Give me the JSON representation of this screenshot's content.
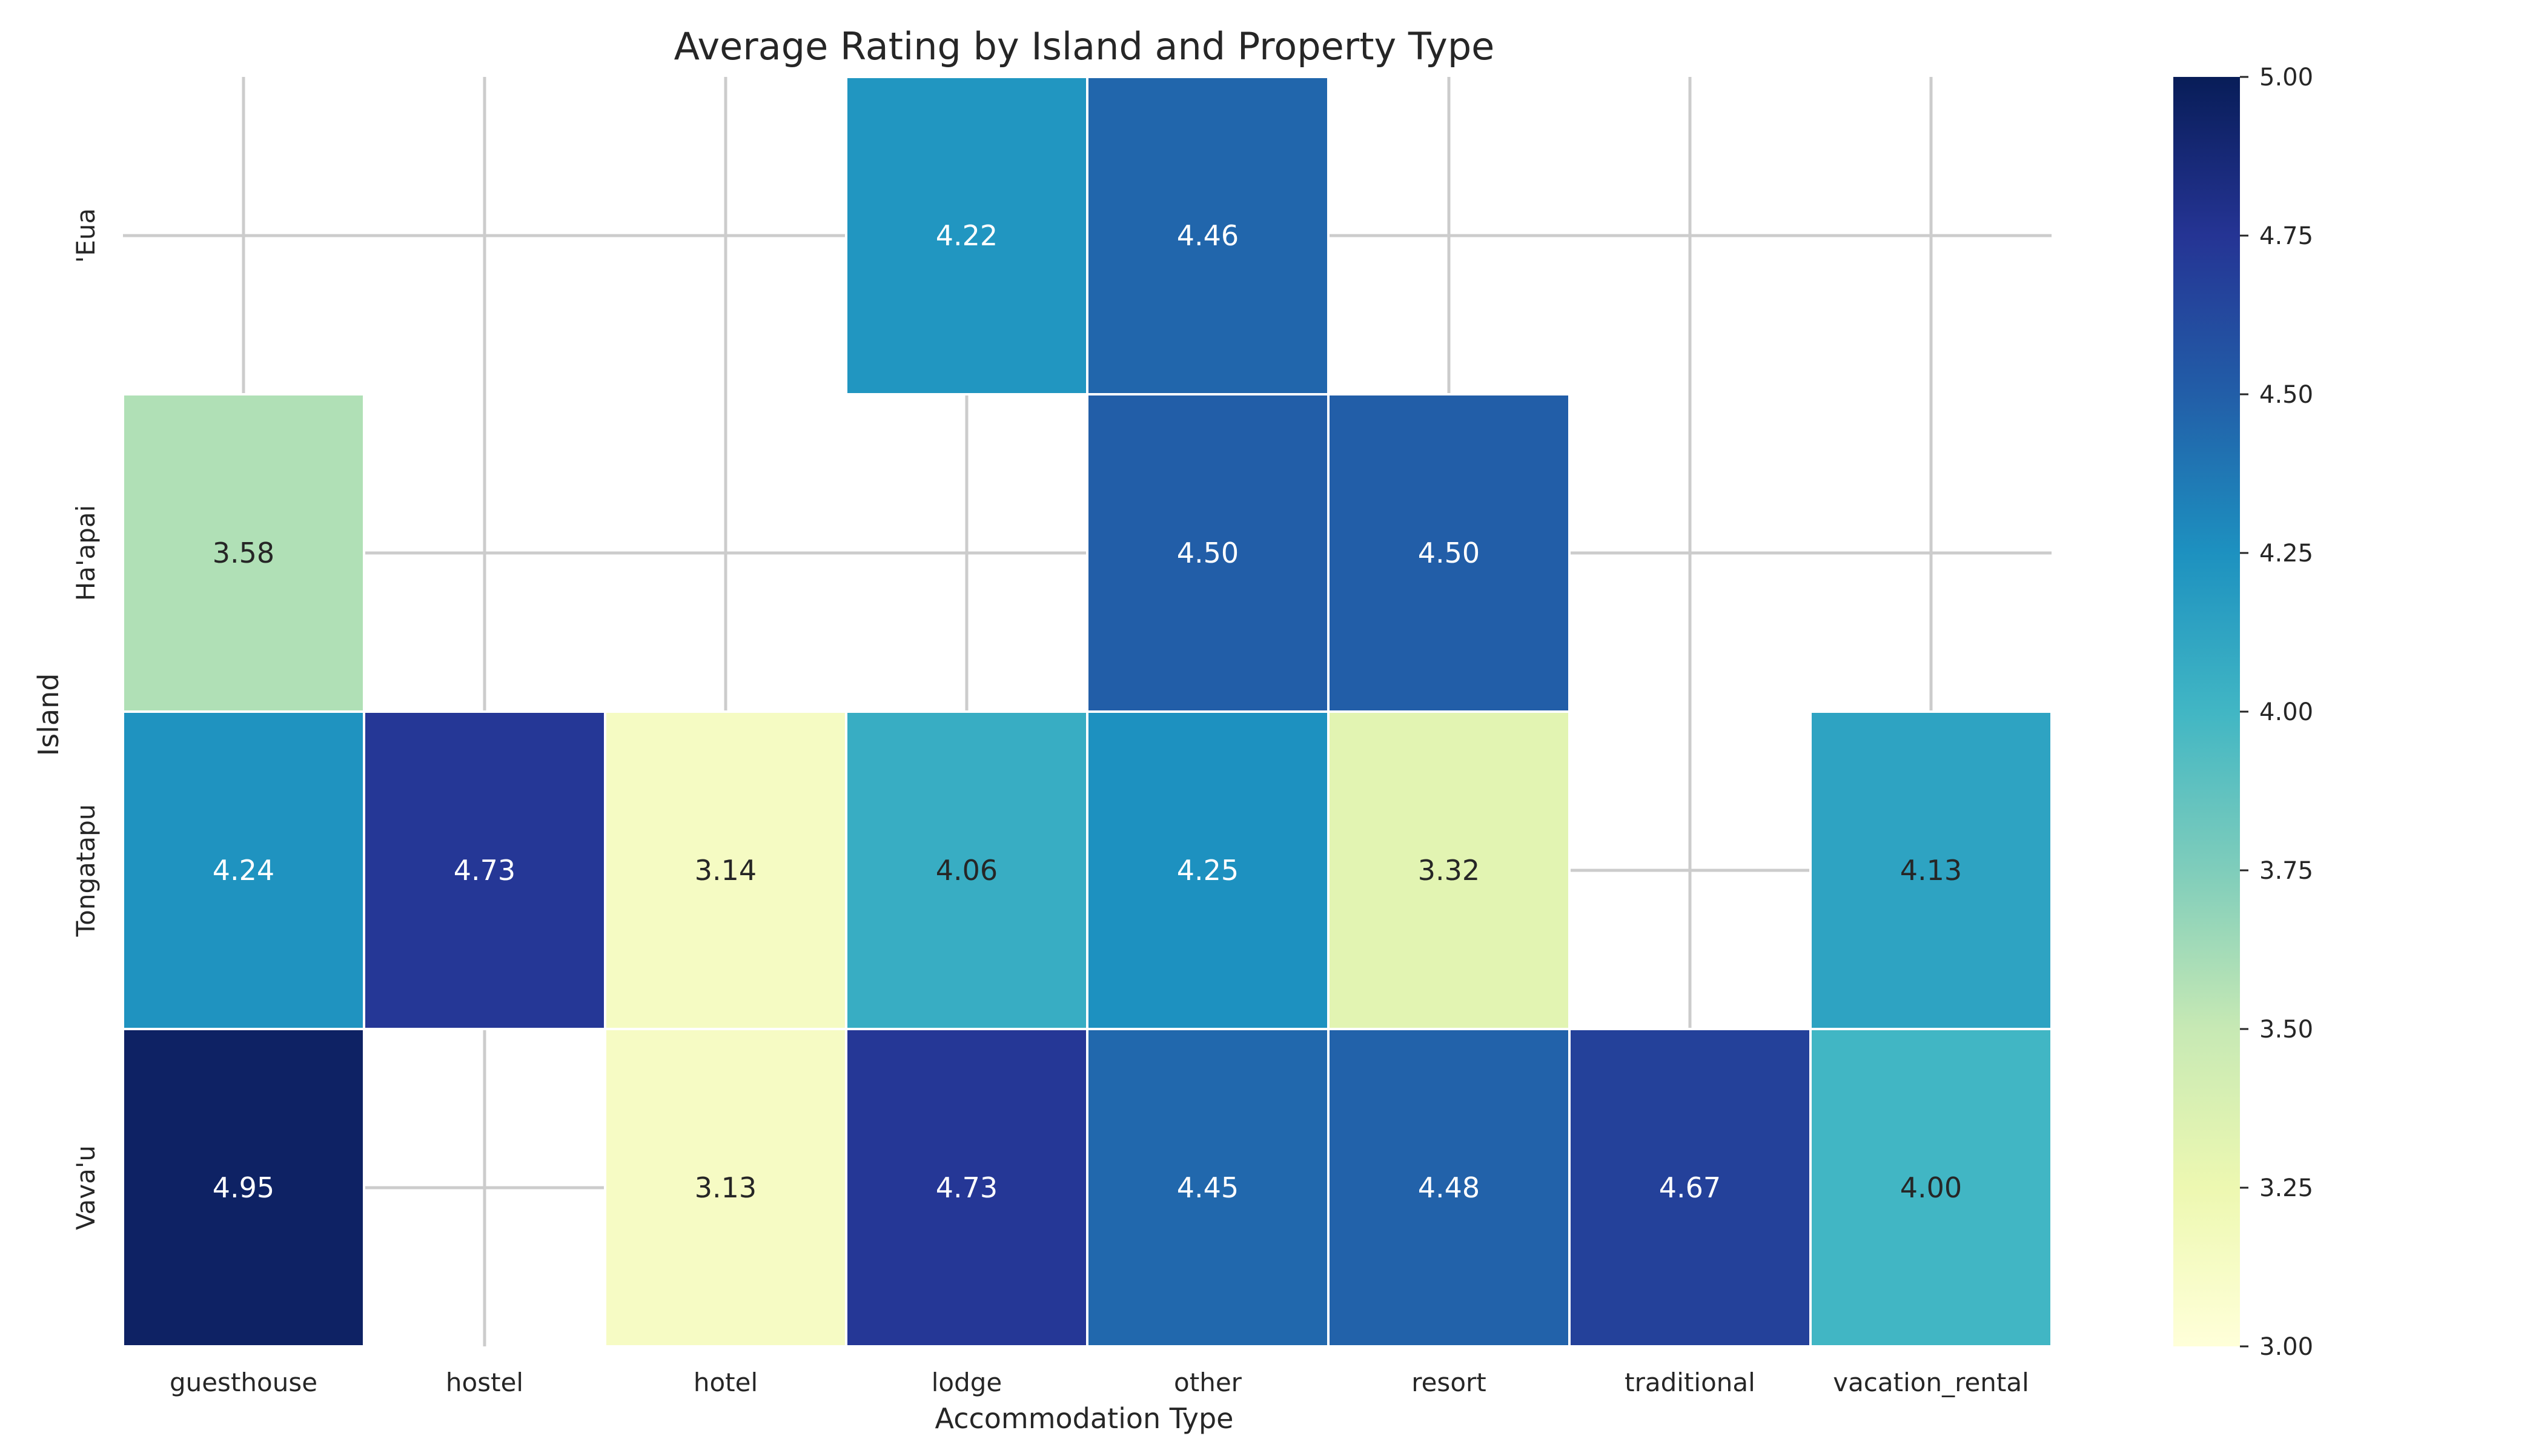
{
  "chart_data": {
    "type": "heatmap",
    "title": "Average Rating by Island and Property Type",
    "xlabel": "Accommodation Type",
    "ylabel": "Island",
    "x_categories": [
      "guesthouse",
      "hostel",
      "hotel",
      "lodge",
      "other",
      "resort",
      "traditional",
      "vacation_rental"
    ],
    "y_categories": [
      "'Eua",
      "Ha'apai",
      "Tongatapu",
      "Vava'u"
    ],
    "values": [
      [
        null,
        null,
        null,
        4.22,
        4.46,
        null,
        null,
        null
      ],
      [
        3.58,
        null,
        null,
        null,
        4.5,
        4.5,
        null,
        null
      ],
      [
        4.24,
        4.73,
        3.14,
        4.06,
        4.25,
        3.32,
        null,
        4.13
      ],
      [
        4.95,
        null,
        3.13,
        4.73,
        4.45,
        4.48,
        4.67,
        4.0
      ]
    ],
    "cell_labels": [
      [
        "",
        "",
        "",
        "4.22",
        "4.46",
        "",
        "",
        ""
      ],
      [
        "3.58",
        "",
        "",
        "",
        "4.50",
        "4.50",
        "",
        ""
      ],
      [
        "4.24",
        "4.73",
        "3.14",
        "4.06",
        "4.25",
        "3.32",
        "",
        "4.13"
      ],
      [
        "4.95",
        "",
        "3.13",
        "4.73",
        "4.45",
        "4.48",
        "4.67",
        "4.00"
      ]
    ],
    "colorbar": {
      "range": [
        3.0,
        5.0
      ],
      "ticks": [
        "3.00",
        "3.25",
        "3.50",
        "3.75",
        "4.00",
        "4.25",
        "4.50",
        "4.75",
        "5.00"
      ],
      "colormap": "YlGnBu"
    },
    "grid": true,
    "colors": {
      "grid": "#cccccc",
      "text_dark": "#262626",
      "text_light": "#ffffff"
    }
  }
}
